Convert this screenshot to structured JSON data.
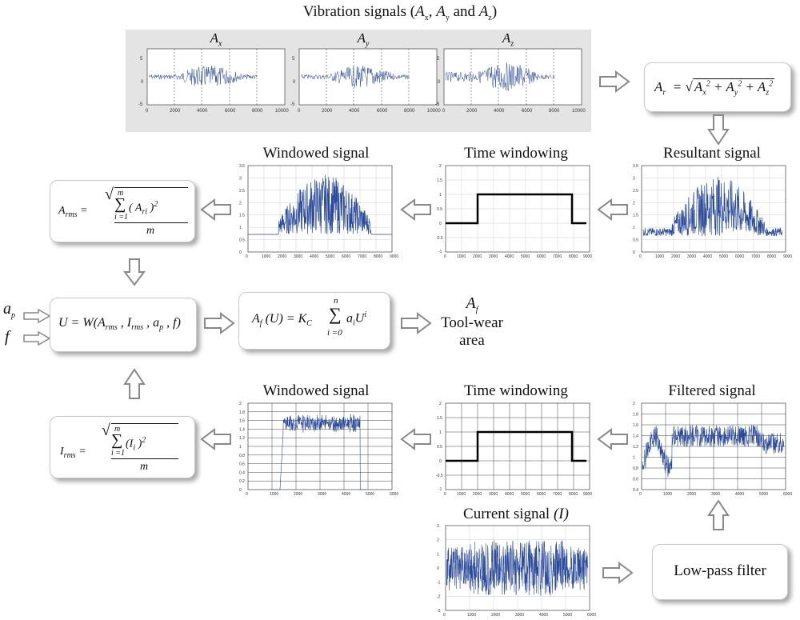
{
  "vibration": {
    "title": "Vibration signals (Ax, Ay and Az)",
    "plots": [
      {
        "label": "Ax",
        "yticks": [
          "5",
          "0",
          "-5"
        ],
        "xticks": [
          "0",
          "2000",
          "4000",
          "6000",
          "8000",
          "10000"
        ]
      },
      {
        "label": "Ay",
        "yticks": [
          "5",
          "0",
          "-5"
        ],
        "xticks": [
          "0",
          "2000",
          "4000",
          "6000",
          "8000",
          "10000"
        ]
      },
      {
        "label": "Az",
        "yticks": [
          "5",
          "0",
          "-5"
        ],
        "xticks": [
          "0",
          "2000",
          "4000",
          "6000",
          "8000",
          "10000"
        ]
      }
    ]
  },
  "resultant_eq": {
    "lhs": "Ar",
    "text": "= √(Ax² + Ay² + Az²)"
  },
  "top_row": {
    "windowed_title": "Windowed signal",
    "time_windowing_title": "Time windowing",
    "resultant_title": "Resultant signal",
    "xticks": [
      "0",
      "1000",
      "2000",
      "3000",
      "4000",
      "5000",
      "6000",
      "7000",
      "8000",
      "9000"
    ],
    "yticks_signal": [
      "3.5",
      "3",
      "2.5",
      "2",
      "1.5",
      "1",
      "0.5",
      "0"
    ],
    "yticks_window": [
      "2",
      "1.5",
      "1",
      "0.5",
      "0",
      "-0.5",
      "-1"
    ]
  },
  "arms_eq": {
    "lhs": "Arms =",
    "num": "Σ (Ari)²",
    "sum_top": "m",
    "sum_bottom": "i=1",
    "den": "m"
  },
  "irms_eq": {
    "lhs": "Irms =",
    "num": "Σ (Ii)²",
    "sum_top": "m",
    "sum_bottom": "i=1",
    "den": "m"
  },
  "inputs": {
    "ap": "ap",
    "f": "f"
  },
  "u_eq": {
    "text": "U = W(Arms , Irms , ap , f)"
  },
  "af_eq": {
    "lhs": "Af (U) = KC",
    "sum_top": "n",
    "sum_bottom": "i=0",
    "rhs": "ai U^i"
  },
  "output": {
    "symbol": "Af",
    "line1": "Tool-wear",
    "line2": "area"
  },
  "bottom_row": {
    "windowed_title": "Windowed signal",
    "time_windowing_title": "Time windowing",
    "filtered_title": "Filtered signal",
    "xticks_6000": [
      "0",
      "1000",
      "2000",
      "3000",
      "4000",
      "5000",
      "6000"
    ],
    "xticks_9000": [
      "0",
      "1000",
      "2000",
      "3000",
      "4000",
      "5000",
      "6000",
      "7000",
      "8000",
      "9000"
    ],
    "yticks_signal": [
      "2",
      "1.8",
      "1.6",
      "1.4",
      "1.2",
      "1",
      "0.8",
      "0.6",
      "0.4",
      "0.2",
      "0"
    ],
    "yticks_window": [
      "2",
      "1.5",
      "1",
      "0.5",
      "0",
      "-0.5",
      "-1"
    ],
    "yticks_filtered": [
      "2",
      "1.8",
      "1.6",
      "1.4",
      "1.2",
      "1",
      "0.8",
      "0.6",
      "0.4"
    ]
  },
  "current": {
    "title_plain": "Current signal ",
    "title_italic": "(I)",
    "yticks": [
      "3",
      "2",
      "1",
      "0",
      "-1",
      "-2",
      "-3"
    ],
    "xticks": [
      "0",
      "1000",
      "2000",
      "3000",
      "4000",
      "5000",
      "6000"
    ]
  },
  "lowpass": {
    "label": "Low-pass filter"
  },
  "colors": {
    "signal": "#2b4a9a",
    "window": "#000000",
    "panel": "#e4e4e4",
    "arrow_fill": "#ffffff",
    "arrow_stroke": "#888888"
  }
}
